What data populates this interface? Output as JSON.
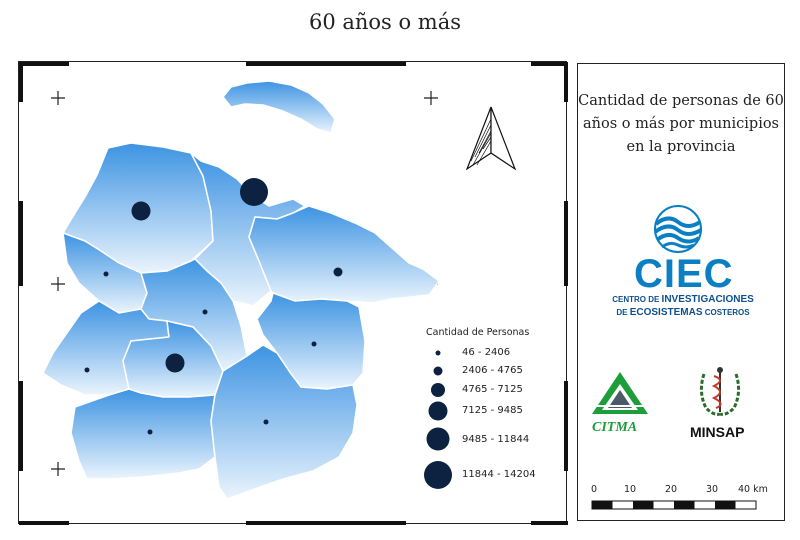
{
  "title": "60 años o más",
  "panel_title_lines": [
    "Cantidad de personas de 60",
    "años o más por municipios",
    "en la provincia"
  ],
  "legend": {
    "title": "Cantidad de Personas",
    "classes": [
      {
        "label": "46 - 2406",
        "radius": 2.5
      },
      {
        "label": "2406 - 4765",
        "radius": 4.5
      },
      {
        "label": "4765 - 7125",
        "radius": 7
      },
      {
        "label": "7125 - 9485",
        "radius": 9.5
      },
      {
        "label": "9485 - 11844",
        "radius": 11.5
      },
      {
        "label": "11844 - 14204",
        "radius": 14
      }
    ]
  },
  "logos": {
    "ciec": {
      "word": "CIEC",
      "line1_prefix": "CENTRO DE ",
      "line1_main": "INVESTIGACIONES",
      "line2_prefix": "DE ",
      "line2_main": "ECOSISTEMAS",
      "line2_suffix": " COSTEROS"
    },
    "citma": {
      "word": "CITMA"
    },
    "minsap": {
      "word": "MINSAP"
    }
  },
  "scale_bar": {
    "labels": [
      "0",
      "10",
      "20",
      "30",
      "40 km"
    ]
  },
  "colors": {
    "dot": "#0d2240",
    "region_light": "#eaf4fd",
    "region_dark": "#3d93e2",
    "border": "#ffffff",
    "ciec_blue": "#0a7fc4",
    "citma_green": "#1d9e3a"
  }
}
